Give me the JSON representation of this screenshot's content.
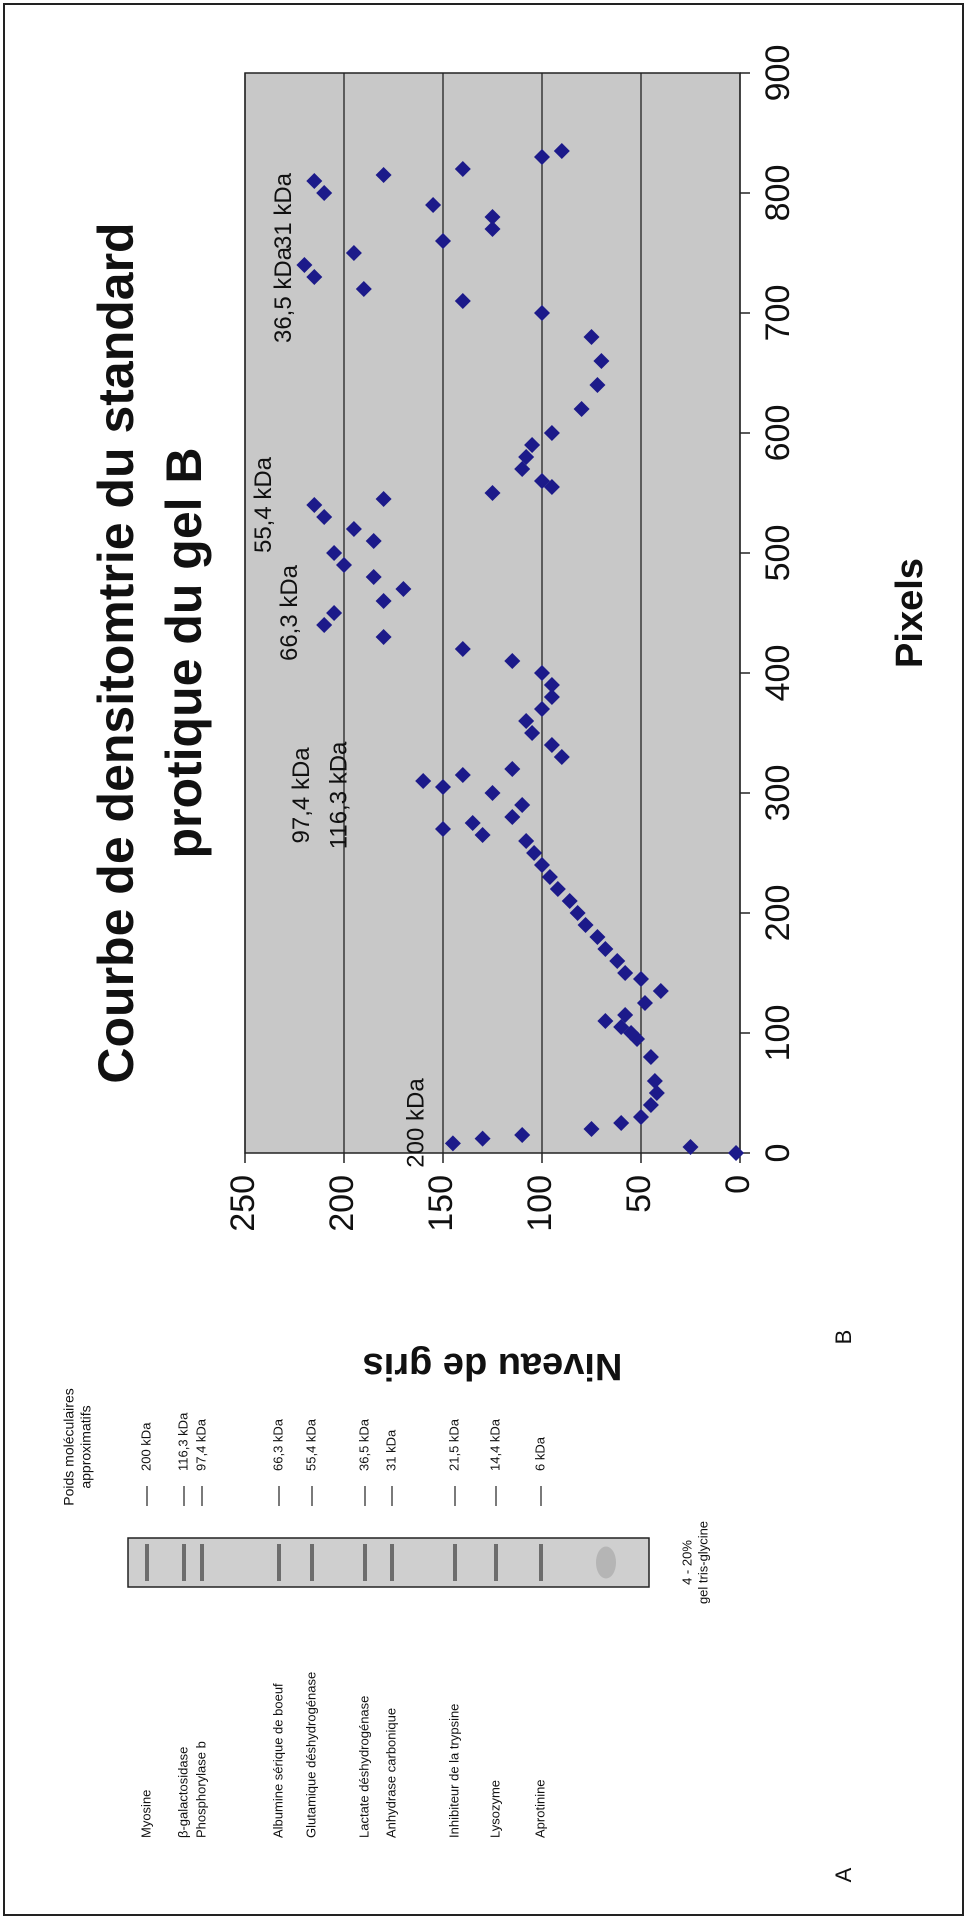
{
  "chart_data": {
    "type": "scatter",
    "title": [
      "Courbe de densitomtrie    du standard",
      "protique    du gel B"
    ],
    "x_label": "Pixels",
    "y_label": "Niveau de gris",
    "x": [
      0,
      5,
      8,
      12,
      15,
      20,
      25,
      30,
      40,
      50,
      60,
      80,
      95,
      100,
      105,
      110,
      115,
      125,
      135,
      145,
      150,
      160,
      170,
      180,
      190,
      200,
      210,
      220,
      230,
      240,
      250,
      260,
      265,
      270,
      275,
      280,
      290,
      300,
      305,
      310,
      315,
      320,
      330,
      340,
      350,
      360,
      370,
      380,
      390,
      400,
      410,
      420,
      430,
      440,
      450,
      460,
      470,
      480,
      490,
      500,
      510,
      520,
      530,
      540,
      545,
      550,
      555,
      560,
      570,
      580,
      590,
      600,
      620,
      640,
      660,
      680,
      700,
      710,
      720,
      730,
      740,
      750,
      760,
      770,
      780,
      790,
      800,
      810,
      815,
      820,
      830,
      835
    ],
    "values": [
      2,
      25,
      145,
      130,
      110,
      75,
      60,
      50,
      45,
      42,
      43,
      45,
      52,
      55,
      60,
      68,
      58,
      48,
      40,
      50,
      58,
      62,
      68,
      72,
      78,
      82,
      86,
      92,
      96,
      100,
      104,
      108,
      130,
      150,
      135,
      115,
      110,
      125,
      150,
      160,
      140,
      115,
      90,
      95,
      105,
      108,
      100,
      95,
      95,
      100,
      115,
      140,
      180,
      210,
      205,
      180,
      170,
      185,
      200,
      205,
      185,
      195,
      210,
      215,
      180,
      125,
      95,
      100,
      110,
      108,
      105,
      95,
      80,
      72,
      70,
      75,
      100,
      140,
      190,
      215,
      220,
      195,
      150,
      125,
      125,
      155,
      210,
      215,
      180,
      140,
      100,
      90
    ],
    "color": "#1c1a8a",
    "background": "#c8c8c8",
    "xlim": [
      0,
      900
    ],
    "xticks": [
      0,
      100,
      200,
      300,
      400,
      500,
      600,
      700,
      800,
      900
    ],
    "ylim": [
      0,
      250
    ],
    "yticks": [
      0,
      50,
      100,
      150,
      200,
      250
    ],
    "grid": true,
    "annotations": [
      "200 kDa",
      "116,3 kDa",
      "97,4 kDa",
      "66,3 kDa",
      "55,4 kDa",
      "36,5 kDa",
      "31 kDa"
    ]
  },
  "panel_labels": [
    "A",
    "B"
  ],
  "gel": {
    "header": [
      "Poids moléculaires",
      "approximatifs"
    ],
    "gel_label": [
      "4 - 20%",
      "gel tris-glycine"
    ],
    "proteins": [
      {
        "name": "Myosine",
        "weight": "200 kDa"
      },
      {
        "name": "β-galactosidase",
        "weight": "116,3 kDa"
      },
      {
        "name": "Phosphorylase b",
        "weight": "97,4 kDa"
      },
      {
        "name": "Albumine sérique de boeuf",
        "weight": "66,3 kDa"
      },
      {
        "name": "Glutamique déshydrogénase",
        "weight": "55,4 kDa"
      },
      {
        "name": "Lactate déshydrogénase",
        "weight": "36,5 kDa"
      },
      {
        "name": "Anhydrase carbonique",
        "weight": "31 kDa"
      },
      {
        "name": "Inhibiteur de la trypsine",
        "weight": "21,5 kDa"
      },
      {
        "name": "Lysozyme",
        "weight": "14,4 kDa"
      },
      {
        "name": "Aprotinine",
        "weight": "6 kDa"
      }
    ]
  }
}
